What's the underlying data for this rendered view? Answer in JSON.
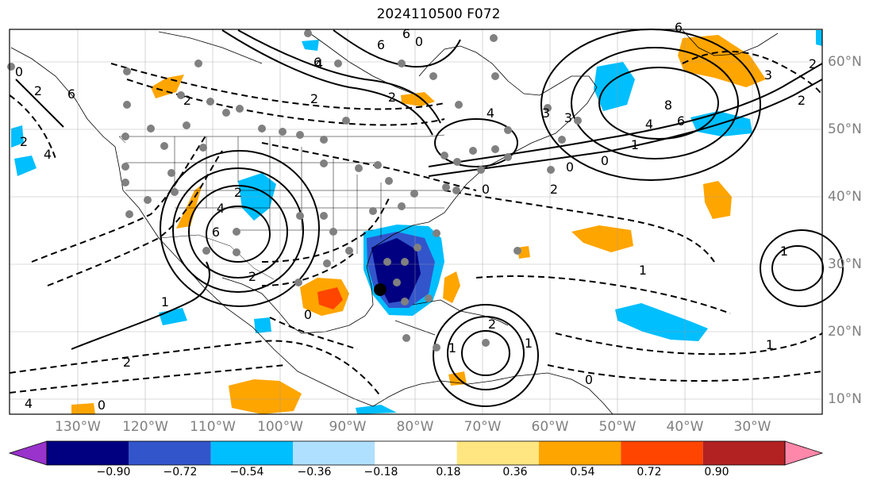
{
  "title": "2024110500 F072",
  "map": {
    "projection": "Plate Carree",
    "extent": {
      "lon": [
        -140,
        0
      ],
      "lat": [
        7,
        64
      ]
    },
    "lon_labels": [
      "130°W",
      "120°W",
      "110°W",
      "100°W",
      "90°W",
      "80°W",
      "70°W",
      "60°W",
      "50°W",
      "40°W",
      "30°W"
    ],
    "lat_labels": [
      "60°N",
      "50°N",
      "40°N",
      "30°N",
      "20°N",
      "10°N"
    ],
    "contour_labels": [
      "2",
      "4",
      "6",
      "8",
      "6",
      "4",
      "2",
      "0",
      "2",
      "1",
      "1",
      "2",
      "6",
      "4",
      "2",
      "2",
      "0",
      "2",
      "3",
      "2",
      "1",
      "0",
      "1",
      "0",
      "0",
      "1",
      "2",
      "1",
      "4",
      "3",
      "2",
      "3",
      "0",
      "6",
      "6",
      "2",
      "0",
      "2",
      "4",
      "6",
      "6",
      "1",
      "0",
      "4"
    ]
  },
  "colorbar": {
    "labels": [
      "−0.90",
      "−0.72",
      "−0.54",
      "−0.36",
      "−0.18",
      "0.18",
      "0.36",
      "0.54",
      "0.72",
      "0.90"
    ],
    "colors": [
      "#9933cc",
      "#000080",
      "#3355cc",
      "#00bfff",
      "#b0e0ff",
      "#ffffff",
      "#ffe680",
      "#ffa500",
      "#ff4500",
      "#b22222",
      "#ff88aa"
    ]
  }
}
